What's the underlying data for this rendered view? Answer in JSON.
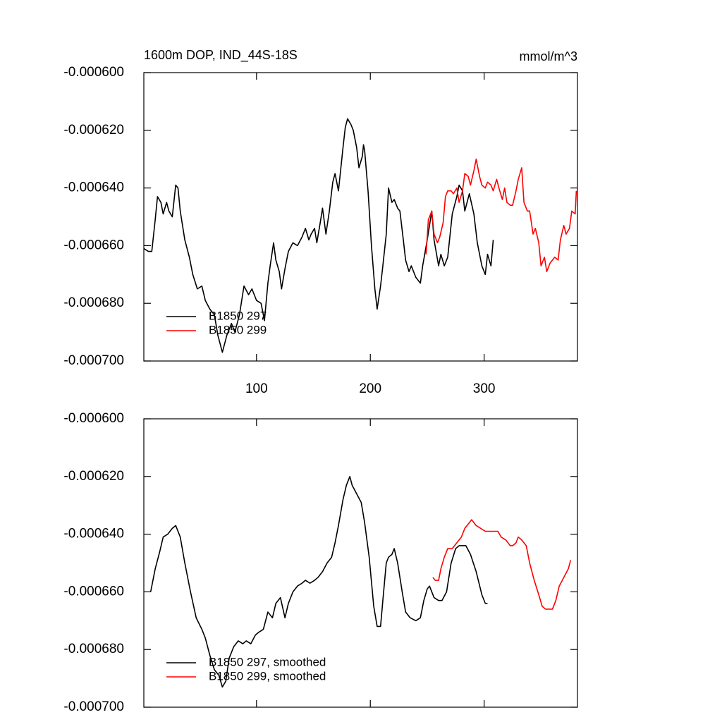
{
  "chart_data": [
    {
      "type": "line",
      "title": "1600m DOP, IND_44S-18S",
      "units": "mmol/m^3",
      "xlim": [
        1,
        382
      ],
      "xticks": [
        100,
        200,
        300
      ],
      "show_xtick_labels": true,
      "ylim": [
        -0.0007,
        -0.0006
      ],
      "yticks": [
        {
          "value": -0.0006,
          "label": "-0.000600"
        },
        {
          "value": -0.00062,
          "label": "-0.000620"
        },
        {
          "value": -0.00064,
          "label": "-0.000640"
        },
        {
          "value": -0.00066,
          "label": "-0.000660"
        },
        {
          "value": -0.00068,
          "label": "-0.000680"
        },
        {
          "value": -0.0007,
          "label": "-0.000700"
        }
      ],
      "legend": "lower left",
      "series": [
        {
          "name": "B1850 297",
          "color": "#000000",
          "x": [
            1,
            5,
            8,
            11,
            13,
            16,
            18,
            21,
            23,
            26,
            29,
            31,
            33,
            37,
            41,
            44,
            48,
            52,
            55,
            59,
            63,
            66,
            70,
            74,
            78,
            81,
            85,
            89,
            93,
            96,
            100,
            104,
            107,
            110,
            112,
            115,
            117,
            120,
            122,
            125,
            128,
            132,
            136,
            140,
            143,
            146,
            148,
            151,
            153,
            156,
            158,
            161,
            164,
            167,
            169,
            172,
            176,
            178,
            180,
            183,
            185,
            188,
            190,
            193,
            194,
            195,
            198,
            201,
            204,
            206,
            209,
            211,
            214,
            216,
            219,
            221,
            224,
            226,
            229,
            231,
            234,
            236,
            240,
            244,
            246,
            250,
            254,
            256,
            260,
            262,
            265,
            268,
            272,
            276,
            278,
            281,
            283,
            287,
            291,
            294,
            298,
            301,
            303,
            306,
            308
          ],
          "values": [
            -0.000661,
            -0.000662,
            -0.000662,
            -0.000651,
            -0.000643,
            -0.000645,
            -0.000649,
            -0.000645,
            -0.000648,
            -0.00065,
            -0.000639,
            -0.00064,
            -0.000648,
            -0.000658,
            -0.000664,
            -0.00067,
            -0.000675,
            -0.000674,
            -0.000679,
            -0.000682,
            -0.000684,
            -0.000691,
            -0.000697,
            -0.000691,
            -0.000687,
            -0.00069,
            -0.000684,
            -0.000674,
            -0.000677,
            -0.000675,
            -0.000679,
            -0.00068,
            -0.000686,
            -0.000673,
            -0.000667,
            -0.000659,
            -0.000665,
            -0.000669,
            -0.000675,
            -0.000668,
            -0.000662,
            -0.000659,
            -0.00066,
            -0.000657,
            -0.000654,
            -0.000658,
            -0.000656,
            -0.000654,
            -0.000659,
            -0.000652,
            -0.000647,
            -0.000656,
            -0.000648,
            -0.000638,
            -0.000635,
            -0.000641,
            -0.000626,
            -0.000619,
            -0.000616,
            -0.000618,
            -0.00062,
            -0.000626,
            -0.000633,
            -0.000629,
            -0.000625,
            -0.000627,
            -0.000641,
            -0.00066,
            -0.000675,
            -0.000682,
            -0.000674,
            -0.000667,
            -0.000656,
            -0.00064,
            -0.000645,
            -0.000644,
            -0.000647,
            -0.000648,
            -0.000658,
            -0.000665,
            -0.000669,
            -0.000667,
            -0.000671,
            -0.000673,
            -0.000667,
            -0.000658,
            -0.000648,
            -0.000658,
            -0.000667,
            -0.000663,
            -0.000667,
            -0.000664,
            -0.000649,
            -0.000643,
            -0.000639,
            -0.000641,
            -0.000648,
            -0.000642,
            -0.000649,
            -0.000659,
            -0.000667,
            -0.00067,
            -0.000663,
            -0.000667,
            -0.000658
          ]
        },
        {
          "name": "B1850 299",
          "color": "#ff0000",
          "x": [
            249,
            251,
            254,
            256,
            259,
            261,
            264,
            266,
            268,
            271,
            273,
            276,
            278,
            281,
            283,
            286,
            288,
            291,
            293,
            296,
            298,
            301,
            303,
            306,
            308,
            311,
            313,
            316,
            318,
            320,
            323,
            325,
            328,
            330,
            333,
            335,
            338,
            340,
            343,
            345,
            348,
            350,
            353,
            355,
            358,
            360,
            362,
            365,
            367,
            370,
            372,
            375,
            377,
            380,
            381
          ],
          "values": [
            -0.000663,
            -0.000651,
            -0.000648,
            -0.000656,
            -0.000659,
            -0.000657,
            -0.000652,
            -0.000643,
            -0.000641,
            -0.000641,
            -0.000642,
            -0.00064,
            -0.000645,
            -0.000641,
            -0.000635,
            -0.000636,
            -0.000639,
            -0.000634,
            -0.00063,
            -0.000636,
            -0.000639,
            -0.00064,
            -0.000638,
            -0.000639,
            -0.000641,
            -0.000637,
            -0.00064,
            -0.000644,
            -0.00064,
            -0.000645,
            -0.000646,
            -0.000646,
            -0.000641,
            -0.000637,
            -0.000633,
            -0.000645,
            -0.000648,
            -0.000648,
            -0.000656,
            -0.000654,
            -0.000659,
            -0.000667,
            -0.000664,
            -0.000669,
            -0.000666,
            -0.000665,
            -0.000664,
            -0.000665,
            -0.000658,
            -0.000653,
            -0.000656,
            -0.000654,
            -0.000648,
            -0.000649,
            -0.000641
          ]
        }
      ]
    },
    {
      "type": "line",
      "xlim": [
        1,
        382
      ],
      "xticks": [
        100,
        200,
        300
      ],
      "show_xtick_labels": false,
      "ylim": [
        -0.0007,
        -0.0006
      ],
      "yticks": [
        {
          "value": -0.0006,
          "label": "-0.000600"
        },
        {
          "value": -0.00062,
          "label": "-0.000620"
        },
        {
          "value": -0.00064,
          "label": "-0.000640"
        },
        {
          "value": -0.00066,
          "label": "-0.000660"
        },
        {
          "value": -0.00068,
          "label": "-0.000680"
        },
        {
          "value": -0.0007,
          "label": "-0.000700"
        }
      ],
      "legend": "lower left",
      "series": [
        {
          "name": "B1850 297, smoothed",
          "color": "#000000",
          "x": [
            7,
            11,
            15,
            18,
            22,
            26,
            29,
            33,
            37,
            42,
            47,
            52,
            55,
            59,
            63,
            67,
            70,
            73,
            76,
            80,
            84,
            88,
            91,
            95,
            99,
            102,
            106,
            110,
            114,
            117,
            121,
            125,
            128,
            132,
            136,
            140,
            143,
            147,
            151,
            154,
            158,
            162,
            166,
            169,
            172,
            176,
            179,
            182,
            184,
            188,
            192,
            195,
            199,
            203,
            206,
            209,
            211,
            214,
            216,
            219,
            221,
            224,
            228,
            231,
            235,
            240,
            244,
            247,
            250,
            252,
            256,
            260,
            263,
            267,
            271,
            275,
            278,
            281,
            284,
            288,
            293,
            298,
            301,
            303
          ],
          "values": [
            -0.00066,
            -0.000652,
            -0.000646,
            -0.000641,
            -0.00064,
            -0.000638,
            -0.000637,
            -0.000641,
            -0.00065,
            -0.00066,
            -0.000669,
            -0.000673,
            -0.000676,
            -0.000682,
            -0.000687,
            -0.000689,
            -0.000693,
            -0.000691,
            -0.000683,
            -0.000679,
            -0.000677,
            -0.000678,
            -0.000677,
            -0.000678,
            -0.000675,
            -0.000674,
            -0.000673,
            -0.000667,
            -0.000669,
            -0.000664,
            -0.000662,
            -0.000669,
            -0.000664,
            -0.00066,
            -0.000658,
            -0.000657,
            -0.000656,
            -0.000657,
            -0.000656,
            -0.000655,
            -0.000653,
            -0.00065,
            -0.000648,
            -0.000643,
            -0.000637,
            -0.000628,
            -0.000623,
            -0.00062,
            -0.000623,
            -0.000626,
            -0.000629,
            -0.000636,
            -0.000648,
            -0.000665,
            -0.000672,
            -0.000672,
            -0.000663,
            -0.00065,
            -0.000648,
            -0.000647,
            -0.000645,
            -0.00065,
            -0.00066,
            -0.000667,
            -0.000669,
            -0.00067,
            -0.000669,
            -0.000663,
            -0.000659,
            -0.000658,
            -0.000662,
            -0.000663,
            -0.000663,
            -0.00066,
            -0.00065,
            -0.000645,
            -0.000644,
            -0.000644,
            -0.000644,
            -0.000647,
            -0.000653,
            -0.000661,
            -0.000664,
            -0.000664
          ]
        },
        {
          "name": "B1850 299, smoothed",
          "color": "#ff0000",
          "x": [
            255,
            257,
            260,
            262,
            265,
            268,
            272,
            276,
            280,
            283,
            287,
            289,
            293,
            297,
            301,
            304,
            308,
            312,
            315,
            319,
            323,
            325,
            328,
            330,
            333,
            337,
            340,
            344,
            348,
            351,
            354,
            358,
            360,
            363,
            366,
            370,
            374,
            376
          ],
          "values": [
            -0.000655,
            -0.000656,
            -0.000656,
            -0.000652,
            -0.000648,
            -0.000645,
            -0.000645,
            -0.000643,
            -0.000641,
            -0.000638,
            -0.000636,
            -0.000635,
            -0.000637,
            -0.000638,
            -0.000639,
            -0.000639,
            -0.000639,
            -0.000639,
            -0.000641,
            -0.000642,
            -0.000644,
            -0.000644,
            -0.000643,
            -0.000641,
            -0.000642,
            -0.000644,
            -0.00065,
            -0.000656,
            -0.000661,
            -0.000665,
            -0.000666,
            -0.000666,
            -0.000666,
            -0.000663,
            -0.000658,
            -0.000655,
            -0.000652,
            -0.000649
          ]
        }
      ]
    }
  ]
}
